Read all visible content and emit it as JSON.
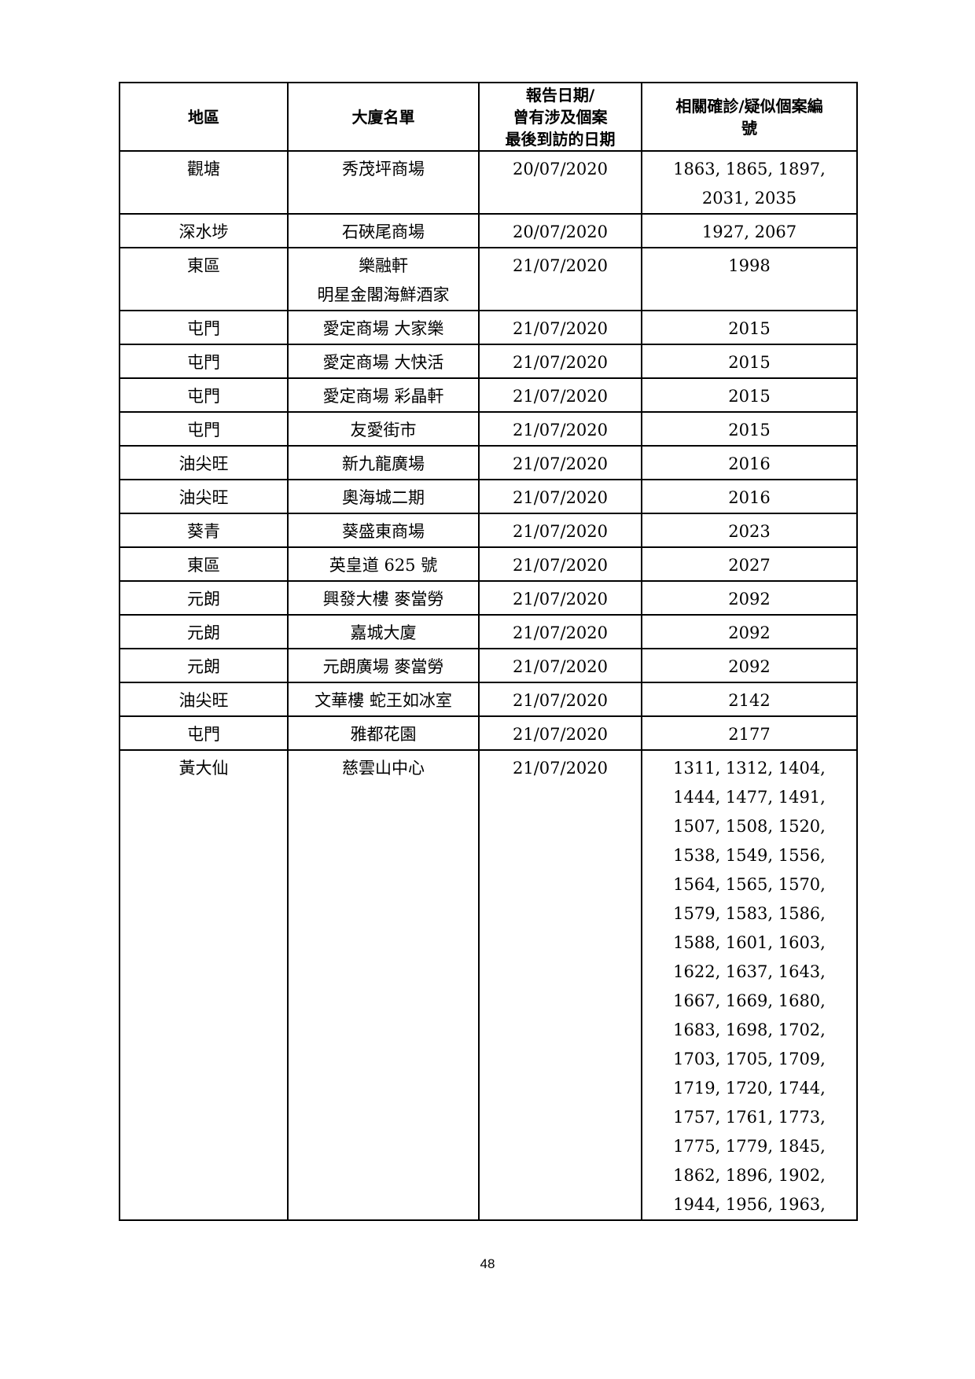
{
  "table": {
    "headers": [
      "地區",
      "大廈名單",
      "報告日期/\n曾有涉及個案\n最後到訪的日期",
      "相關確診/疑似個案編\n號"
    ],
    "rows": [
      [
        "觀塘",
        "秀茂坪商場",
        "20/07/2020",
        "1863, 1865, 1897,\n2031, 2035"
      ],
      [
        "深水埗",
        "石硤尾商場",
        "20/07/2020",
        "1927, 2067"
      ],
      [
        "東區",
        "樂融軒\n明星金閣海鮮酒家",
        "21/07/2020",
        "1998"
      ],
      [
        "屯門",
        "愛定商場 大家樂",
        "21/07/2020",
        "2015"
      ],
      [
        "屯門",
        "愛定商場 大快活",
        "21/07/2020",
        "2015"
      ],
      [
        "屯門",
        "愛定商場 彩晶軒",
        "21/07/2020",
        "2015"
      ],
      [
        "屯門",
        "友愛街市",
        "21/07/2020",
        "2015"
      ],
      [
        "油尖旺",
        "新九龍廣場",
        "21/07/2020",
        "2016"
      ],
      [
        "油尖旺",
        "奧海城二期",
        "21/07/2020",
        "2016"
      ],
      [
        "葵青",
        "葵盛東商場",
        "21/07/2020",
        "2023"
      ],
      [
        "東區",
        "英皇道 625 號",
        "21/07/2020",
        "2027"
      ],
      [
        "元朗",
        "興發大樓 麥當勞",
        "21/07/2020",
        "2092"
      ],
      [
        "元朗",
        "嘉城大廈",
        "21/07/2020",
        "2092"
      ],
      [
        "元朗",
        "元朗廣場 麥當勞",
        "21/07/2020",
        "2092"
      ],
      [
        "油尖旺",
        "文華樓 蛇王如冰室",
        "21/07/2020",
        "2142"
      ],
      [
        "屯門",
        "雅都花園",
        "21/07/2020",
        "2177"
      ],
      [
        "黃大仙",
        "慈雲山中心",
        "21/07/2020",
        "1311, 1312, 1404,\n1444, 1477, 1491,\n1507, 1508, 1520,\n1538, 1549, 1556,\n1564, 1565, 1570,\n1579, 1583, 1586,\n1588, 1601, 1603,\n1622, 1637, 1643,\n1667, 1669, 1680,\n1683, 1698, 1702,\n1703, 1705, 1709,\n1719, 1720, 1744,\n1757, 1761, 1773,\n1775, 1779, 1845,\n1862, 1896, 1902,\n1944, 1956, 1963,"
      ]
    ]
  },
  "page_number": "48"
}
